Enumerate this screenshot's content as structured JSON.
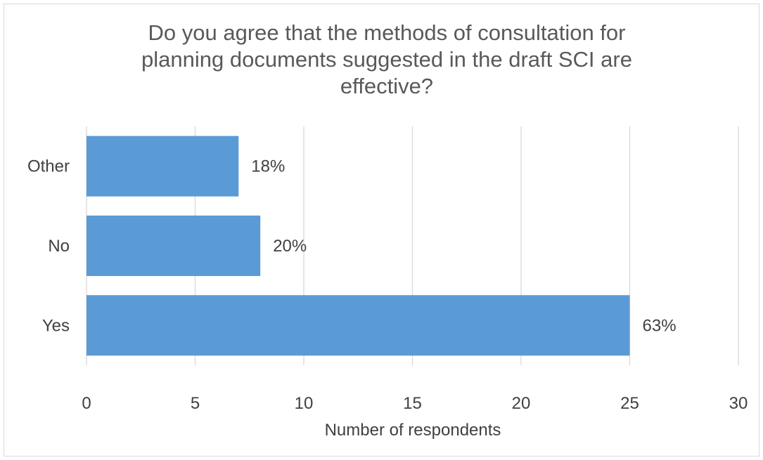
{
  "chart_data": {
    "type": "bar",
    "orientation": "horizontal",
    "title": "Do you agree that the methods of consultation for planning documents suggested in the draft SCI are effective?",
    "categories": [
      "Yes",
      "No",
      "Other"
    ],
    "values": [
      25,
      8,
      7
    ],
    "data_labels": [
      "63%",
      "20%",
      "18%"
    ],
    "xlabel": "Number of respondents",
    "ylabel": "",
    "xlim": [
      0,
      30
    ],
    "x_ticks": [
      "0",
      "5",
      "10",
      "15",
      "20",
      "25",
      "30"
    ],
    "grid": "vertical",
    "legend": "none",
    "colors": {
      "bar": "#5b9bd5",
      "grid": "#d9d9d9",
      "text": "#404040"
    }
  }
}
